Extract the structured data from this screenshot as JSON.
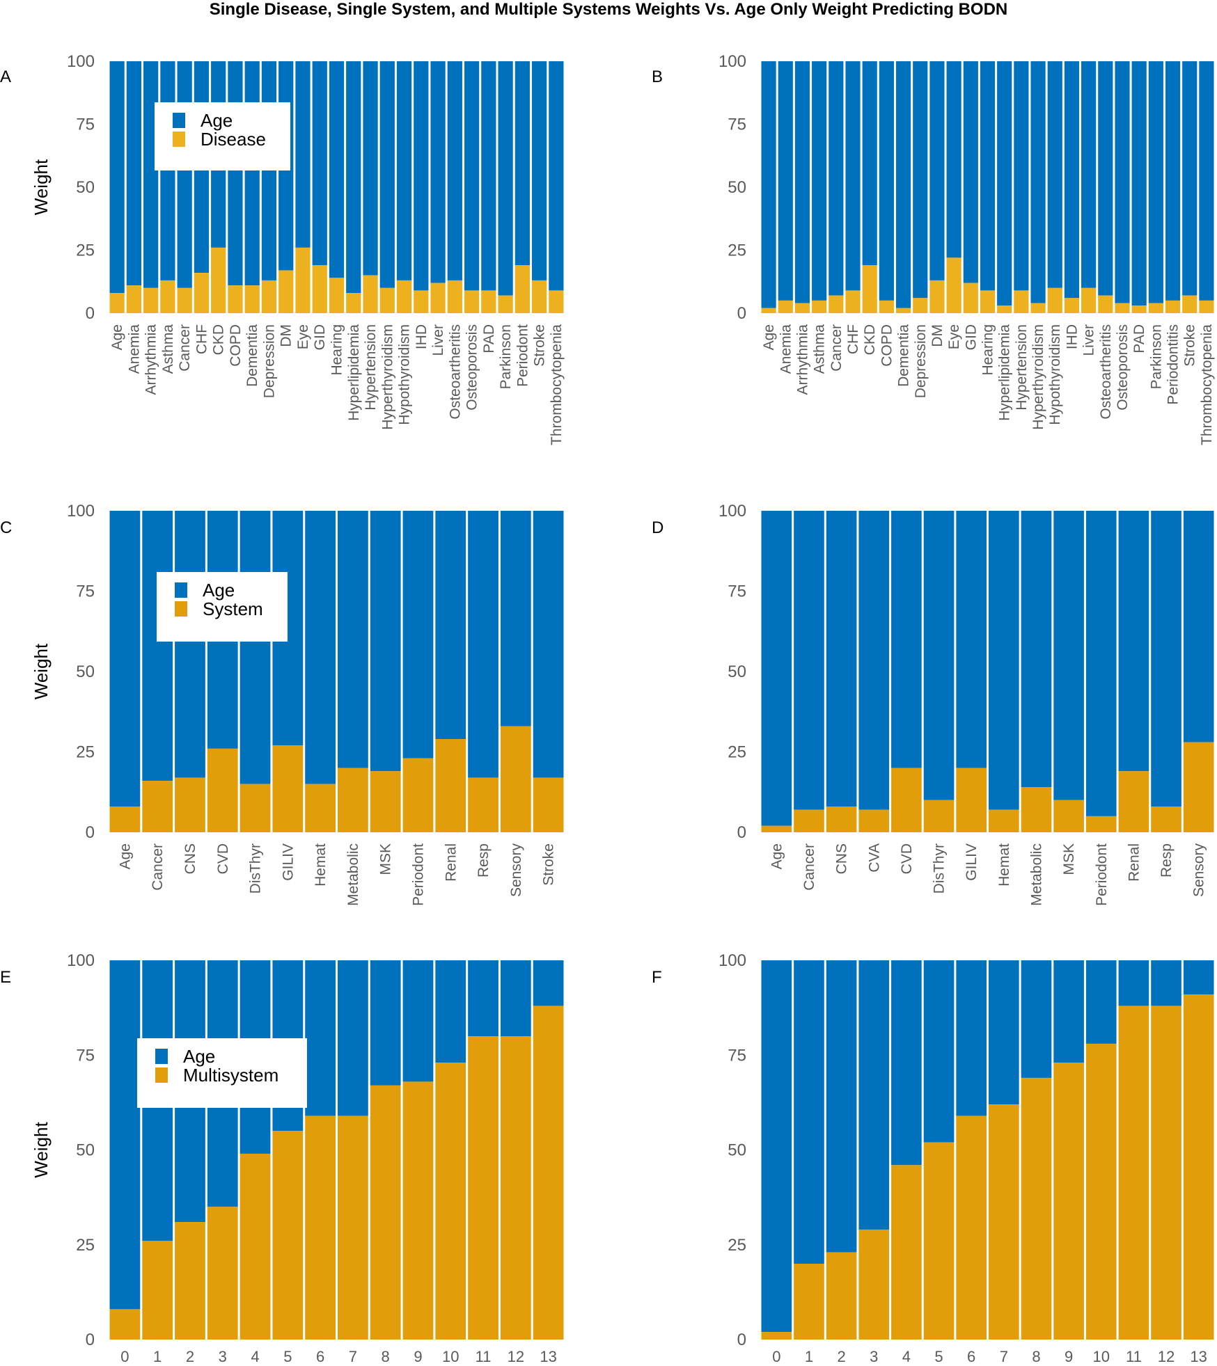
{
  "figure": {
    "title": "Single Disease, Single System, and Multiple Systems Weights Vs. Age Only Weight Predicting BODN"
  },
  "colors": {
    "age": "#0072BD",
    "disease": "#EDB120",
    "system": "#E29D0B",
    "multisystem": "#E29D0B",
    "axis_text": "#595959",
    "panel_letter": "#000000"
  },
  "chart_data": [
    {
      "panel": "A",
      "type": "bar",
      "stacked": true,
      "ylabel": "Weight",
      "ylim": [
        0,
        100
      ],
      "yticks": [
        "0",
        "25",
        "50",
        "75",
        "100"
      ],
      "legend": {
        "location": "upper-left",
        "entries": [
          "Age",
          "Disease"
        ]
      },
      "categories": [
        "Age",
        "Anemia",
        "Arrhythmia",
        "Asthma",
        "Cancer",
        "CHF",
        "CKD",
        "COPD",
        "Dementia",
        "Depression",
        "DM",
        "Eye",
        "GID",
        "Hearing",
        "Hyperlipidemia",
        "Hypertension",
        "Hyperthyroidism",
        "Hypothyroidism",
        "IHD",
        "Liver",
        "Osteoartheritis",
        "Osteoporosis",
        "PAD",
        "Parkinson",
        "Periodont",
        "Stroke",
        "Thrombocytopenia"
      ],
      "series": [
        {
          "name": "Disease",
          "values": [
            8,
            11,
            10,
            13,
            10,
            16,
            26,
            11,
            11,
            13,
            17,
            26,
            19,
            14,
            8,
            15,
            10,
            13,
            9,
            12,
            13,
            9,
            9,
            7,
            19,
            13,
            9
          ]
        },
        {
          "name": "Age",
          "values": [
            92,
            89,
            90,
            87,
            90,
            84,
            74,
            89,
            89,
            87,
            83,
            74,
            81,
            86,
            92,
            85,
            90,
            87,
            91,
            88,
            87,
            91,
            91,
            93,
            81,
            87,
            91
          ]
        }
      ]
    },
    {
      "panel": "B",
      "type": "bar",
      "stacked": true,
      "ylabel": "",
      "ylim": [
        0,
        100
      ],
      "yticks": [
        "0",
        "25",
        "50",
        "75",
        "100"
      ],
      "legend": null,
      "categories": [
        "Age",
        "Anemia",
        "Arrhythmia",
        "Asthma",
        "Cancer",
        "CHF",
        "CKD",
        "COPD",
        "Dementia",
        "Depression",
        "DM",
        "Eye",
        "GID",
        "Hearing",
        "Hyperlipidemia",
        "Hypertension",
        "Hyperthyroidism",
        "Hypothyroidism",
        "IHD",
        "Liver",
        "Osteoartheritis",
        "Osteoporosis",
        "PAD",
        "Parkinson",
        "Periodontitis",
        "Stroke",
        "Thrombocytopenia"
      ],
      "series": [
        {
          "name": "Disease",
          "values": [
            2,
            5,
            4,
            5,
            7,
            9,
            19,
            5,
            2,
            6,
            13,
            22,
            12,
            9,
            3,
            9,
            4,
            10,
            6,
            10,
            7,
            4,
            3,
            4,
            5,
            7,
            5
          ]
        },
        {
          "name": "Age",
          "values": [
            98,
            95,
            96,
            95,
            93,
            91,
            81,
            95,
            98,
            94,
            87,
            78,
            88,
            91,
            97,
            91,
            96,
            90,
            94,
            90,
            93,
            96,
            97,
            96,
            95,
            93,
            95
          ]
        }
      ]
    },
    {
      "panel": "C",
      "type": "bar",
      "stacked": true,
      "ylabel": "Weight",
      "ylim": [
        0,
        100
      ],
      "yticks": [
        "0",
        "25",
        "50",
        "75",
        "100"
      ],
      "legend": {
        "location": "upper-left",
        "entries": [
          "Age",
          "System"
        ]
      },
      "categories": [
        "Age",
        "Cancer",
        "CNS",
        "CVD",
        "DisThyr",
        "GILIV",
        "Hemat",
        "Metabolic",
        "MSK",
        "Periodont",
        "Renal",
        "Resp",
        "Sensory",
        "Stroke"
      ],
      "series": [
        {
          "name": "System",
          "values": [
            8,
            16,
            17,
            26,
            15,
            27,
            15,
            20,
            19,
            23,
            29,
            17,
            33,
            17
          ]
        },
        {
          "name": "Age",
          "values": [
            92,
            84,
            83,
            74,
            85,
            73,
            85,
            80,
            81,
            77,
            71,
            83,
            67,
            83
          ]
        }
      ]
    },
    {
      "panel": "D",
      "type": "bar",
      "stacked": true,
      "ylabel": "",
      "ylim": [
        0,
        100
      ],
      "yticks": [
        "0",
        "25",
        "50",
        "75",
        "100"
      ],
      "legend": null,
      "categories": [
        "Age",
        "Cancer",
        "CNS",
        "CVA",
        "CVD",
        "DisThyr",
        "GILIV",
        "Hemat",
        "Metabolic",
        "MSK",
        "Periodont",
        "Renal",
        "Resp",
        "Sensory"
      ],
      "series": [
        {
          "name": "System",
          "values": [
            2,
            7,
            8,
            7,
            20,
            10,
            20,
            7,
            14,
            10,
            5,
            19,
            8,
            28
          ]
        },
        {
          "name": "Age",
          "values": [
            98,
            93,
            92,
            93,
            80,
            90,
            80,
            93,
            86,
            90,
            95,
            81,
            92,
            72
          ]
        }
      ]
    },
    {
      "panel": "E",
      "type": "bar",
      "stacked": true,
      "ylabel": "Weight",
      "ylim": [
        0,
        100
      ],
      "yticks": [
        "0",
        "25",
        "50",
        "75",
        "100"
      ],
      "legend": {
        "location": "upper-left",
        "entries": [
          "Age",
          "Multisystem"
        ]
      },
      "categories": [
        "0",
        "1",
        "2",
        "3",
        "4",
        "5",
        "6",
        "7",
        "8",
        "9",
        "10",
        "11",
        "12",
        "13"
      ],
      "series": [
        {
          "name": "Multisystem",
          "values": [
            8,
            26,
            31,
            35,
            49,
            55,
            59,
            59,
            67,
            68,
            73,
            80,
            80,
            88
          ]
        },
        {
          "name": "Age",
          "values": [
            92,
            74,
            69,
            65,
            51,
            45,
            41,
            41,
            33,
            32,
            27,
            20,
            20,
            12
          ]
        }
      ]
    },
    {
      "panel": "F",
      "type": "bar",
      "stacked": true,
      "ylabel": "",
      "ylim": [
        0,
        100
      ],
      "yticks": [
        "0",
        "25",
        "50",
        "75",
        "100"
      ],
      "legend": null,
      "categories": [
        "0",
        "1",
        "2",
        "3",
        "4",
        "5",
        "6",
        "7",
        "8",
        "9",
        "10",
        "11",
        "12",
        "13"
      ],
      "series": [
        {
          "name": "Multisystem",
          "values": [
            2,
            20,
            23,
            29,
            46,
            52,
            59,
            62,
            69,
            73,
            78,
            88,
            88,
            91
          ]
        },
        {
          "name": "Age",
          "values": [
            98,
            80,
            77,
            71,
            54,
            48,
            41,
            38,
            31,
            27,
            22,
            12,
            12,
            9
          ]
        }
      ]
    }
  ]
}
